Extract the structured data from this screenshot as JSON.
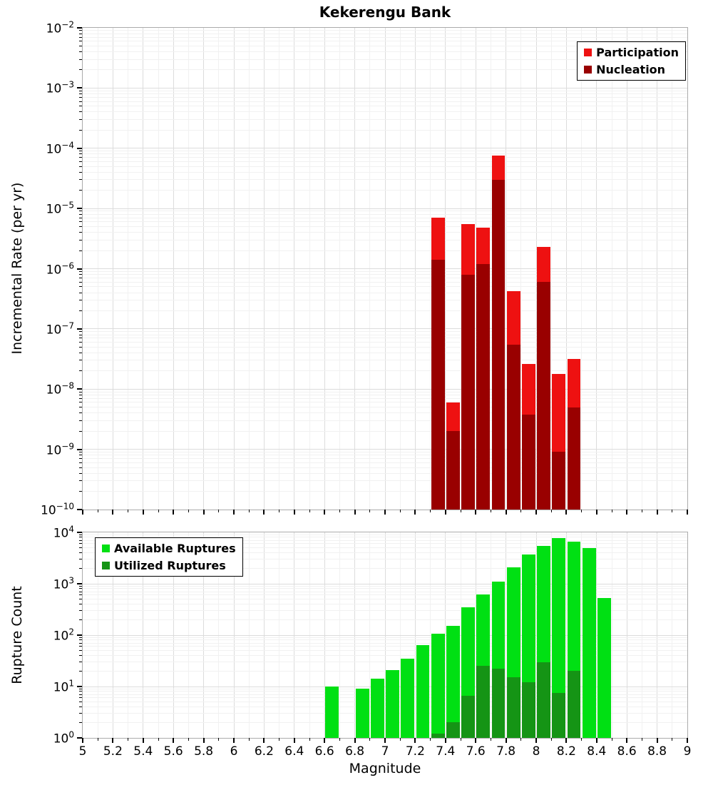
{
  "title": "Kekerengu Bank",
  "chart_data": [
    {
      "type": "bar",
      "panel": "incremental-rate",
      "title": "Kekerengu Bank",
      "xlabel": "",
      "ylabel": "Incremental Rate (per yr)",
      "y_scale": "log",
      "xlim": [
        5,
        9
      ],
      "ylim": [
        1e-10,
        0.01
      ],
      "bin_width": 0.1,
      "grid": true,
      "legend_position": "top-right",
      "x_tick_labels": [
        "5",
        "5.2",
        "5.4",
        "5.6",
        "5.8",
        "6",
        "6.2",
        "6.4",
        "6.6",
        "6.8",
        "7",
        "7.2",
        "7.4",
        "7.6",
        "7.8",
        "8",
        "8.2",
        "8.4",
        "8.6",
        "8.8",
        "9"
      ],
      "y_tick_labels": [
        "10^-10",
        "10^-9",
        "10^-8",
        "10^-7",
        "10^-6",
        "10^-5",
        "10^-4",
        "10^-3",
        "10^-2"
      ],
      "x": [
        7.35,
        7.45,
        7.55,
        7.65,
        7.75,
        7.85,
        7.95,
        8.05,
        8.15,
        8.25
      ],
      "series": [
        {
          "name": "Participation",
          "color": "#ee1111",
          "values": [
            7e-06,
            6e-09,
            5.5e-06,
            4.8e-06,
            7.5e-05,
            4.2e-07,
            2.6e-08,
            2.3e-06,
            1.8e-08,
            3.2e-08
          ]
        },
        {
          "name": "Nucleation",
          "color": "#990000",
          "values": [
            1.4e-06,
            2e-09,
            8e-07,
            1.2e-06,
            3e-05,
            5.5e-08,
            3.8e-09,
            6e-07,
            9e-10,
            5e-09
          ]
        }
      ]
    },
    {
      "type": "bar",
      "panel": "rupture-count",
      "xlabel": "Magnitude",
      "ylabel": "Rupture Count",
      "y_scale": "log",
      "xlim": [
        5,
        9
      ],
      "ylim": [
        1,
        10000
      ],
      "bin_width": 0.1,
      "grid": true,
      "legend_position": "top-left",
      "x_tick_labels": [
        "5",
        "5.2",
        "5.4",
        "5.6",
        "5.8",
        "6",
        "6.2",
        "6.4",
        "6.6",
        "6.8",
        "7",
        "7.2",
        "7.4",
        "7.6",
        "7.8",
        "8",
        "8.2",
        "8.4",
        "8.6",
        "8.8",
        "9"
      ],
      "y_tick_labels": [
        "10^0",
        "10^1",
        "10^2",
        "10^3",
        "10^4"
      ],
      "x": [
        6.65,
        6.85,
        6.95,
        7.05,
        7.15,
        7.25,
        7.35,
        7.45,
        7.55,
        7.65,
        7.75,
        7.85,
        7.95,
        8.05,
        8.15,
        8.25,
        8.35,
        8.45
      ],
      "series": [
        {
          "name": "Available Ruptures",
          "color": "#00e013",
          "values": [
            10,
            9,
            14,
            21,
            35,
            63,
            105,
            150,
            350,
            620,
            1100,
            2100,
            3700,
            5500,
            7800,
            6500,
            4900,
            520
          ]
        },
        {
          "name": "Utilized Ruptures",
          "color": "#159415",
          "values": [
            null,
            null,
            null,
            null,
            null,
            null,
            1.2,
            2,
            6.5,
            25,
            22,
            15,
            12,
            30,
            7.5,
            20,
            null,
            null
          ]
        }
      ]
    }
  ]
}
